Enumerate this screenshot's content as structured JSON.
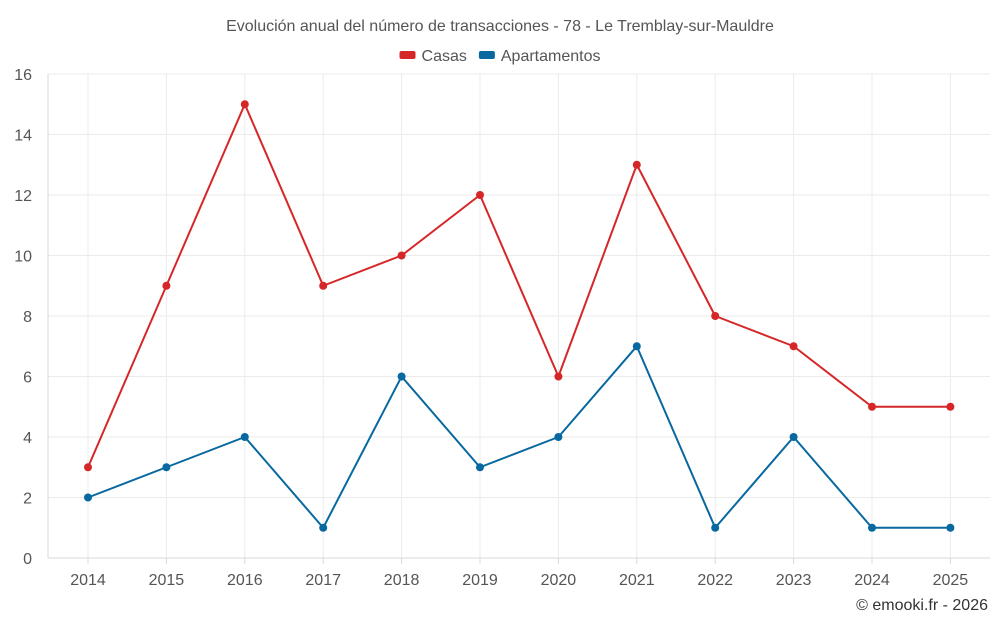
{
  "chart_data": {
    "type": "line",
    "title": "Evolución anual del número de transacciones - 78 - Le Tremblay-sur-Mauldre",
    "categories": [
      "2014",
      "2015",
      "2016",
      "2017",
      "2018",
      "2019",
      "2020",
      "2021",
      "2022",
      "2023",
      "2024",
      "2025"
    ],
    "series": [
      {
        "name": "Casas",
        "color": "#d62728",
        "values": [
          3,
          9,
          15,
          9,
          10,
          12,
          6,
          13,
          8,
          7,
          5,
          5
        ]
      },
      {
        "name": "Apartamentos",
        "color": "#0868a0",
        "values": [
          2,
          3,
          4,
          1,
          6,
          3,
          4,
          7,
          1,
          4,
          1,
          1
        ]
      }
    ],
    "ylim": [
      0,
      16
    ],
    "yticks": [
      0,
      2,
      4,
      6,
      8,
      10,
      12,
      14,
      16
    ],
    "xlabel": "",
    "ylabel": "",
    "grid": true,
    "legend_position": "top-center"
  },
  "credit": "© emooki.fr - 2026"
}
